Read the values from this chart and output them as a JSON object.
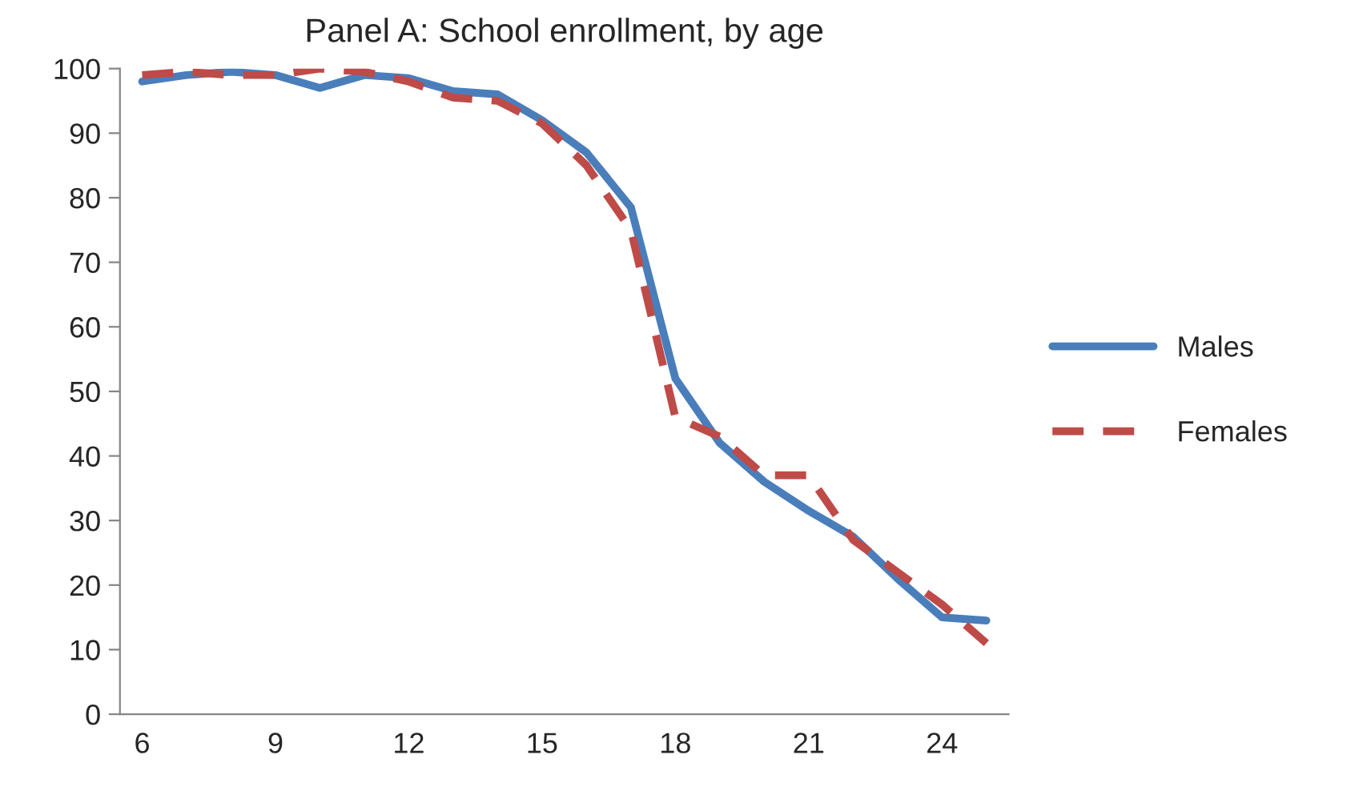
{
  "chart_data": {
    "type": "line",
    "title": "Panel A: School enrollment, by age",
    "categories": [
      "6",
      null,
      null,
      "9",
      null,
      null,
      "12",
      null,
      null,
      "15",
      null,
      null,
      "18",
      null,
      null,
      "21",
      null,
      null,
      "24",
      null
    ],
    "series": [
      {
        "name": "Males",
        "color": "#4a7ebb",
        "line_style": "solid",
        "values": [
          98,
          99,
          99.5,
          99,
          97,
          99,
          98.5,
          96.5,
          96,
          92,
          87,
          78.5,
          52,
          42,
          36,
          31.5,
          27.5,
          21,
          15,
          14.5
        ]
      },
      {
        "name": "Females",
        "color": "#be4b48",
        "line_style": "dashed",
        "values": [
          99,
          99.5,
          99,
          99,
          100,
          99.5,
          98,
          95.5,
          95,
          91.5,
          85,
          75,
          46,
          43,
          37,
          37,
          27,
          22,
          17,
          11
        ]
      }
    ],
    "ylim": [
      0,
      100
    ],
    "yticks": [
      0,
      10,
      20,
      30,
      40,
      50,
      60,
      70,
      80,
      90,
      100
    ],
    "grid": false,
    "legend": "right",
    "marker": "none"
  }
}
